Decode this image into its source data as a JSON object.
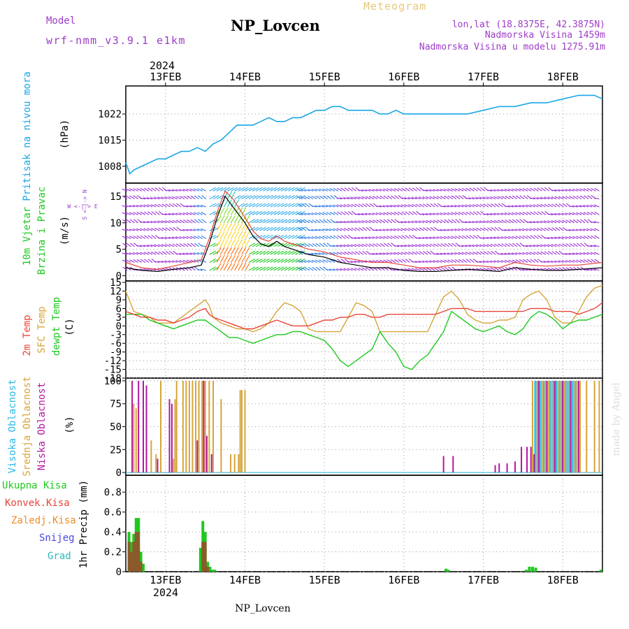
{
  "header": {
    "model_label": "Model",
    "model_name": "wrf-nmm_v3.9.1  e1km",
    "station": "NP_Lovcen",
    "meteogram": "Meteogram",
    "lonlat": "lon,lat (18.8375E, 42.3875N)",
    "elevation": "Nadmorska Visina 1459m",
    "model_elevation": "Nadmorska Visina u modelu 1275.91m"
  },
  "footer": {
    "station": "NP_Lovcen",
    "credit": "made by Angel"
  },
  "colors": {
    "pressure": "#1aa7e6",
    "wind_label": "#1ec81e",
    "temp": "#e8453a",
    "sfc": "#d6a53a",
    "dewpt": "#1ec81e",
    "high_cloud": "#2db9e6",
    "mid_cloud": "#d6a53a",
    "low_cloud": "#b5179e",
    "legend_purple": "#9d3cc8",
    "snow": "#4646e6",
    "grad": "#2db9b9",
    "freezing": "#f08c28",
    "conv": "#e8453a"
  },
  "chart_data": [
    {
      "type": "line",
      "panel": "pressure",
      "ylabel_line1": "Pritisak na nivou mora",
      "ylabel_line2": "(hPa)",
      "yticks": [
        1008,
        1015,
        1022
      ],
      "ylim": [
        1003.5,
        1029.5
      ],
      "x_ticks": [
        "13FEB",
        "14FEB",
        "15FEB",
        "16FEB",
        "17FEB",
        "18FEB"
      ],
      "year": "2024",
      "xlim": [
        12.5,
        18.5
      ],
      "x": [
        12.5,
        12.55,
        12.6,
        12.7,
        12.8,
        12.9,
        13.0,
        13.1,
        13.2,
        13.3,
        13.4,
        13.5,
        13.6,
        13.7,
        13.8,
        13.9,
        14.0,
        14.1,
        14.2,
        14.3,
        14.4,
        14.5,
        14.6,
        14.7,
        14.8,
        14.9,
        15.0,
        15.1,
        15.2,
        15.3,
        15.4,
        15.5,
        15.6,
        15.7,
        15.8,
        15.9,
        16.0,
        16.2,
        16.4,
        16.6,
        16.8,
        17.0,
        17.2,
        17.4,
        17.6,
        17.8,
        18.0,
        18.2,
        18.3,
        18.4,
        18.5
      ],
      "series": [
        {
          "values": [
            1009,
            1006,
            1007,
            1008,
            1009,
            1010,
            1010,
            1011,
            1012,
            1012,
            1013,
            1012,
            1014,
            1015,
            1017,
            1019,
            1019,
            1019,
            1020,
            1021,
            1020,
            1020,
            1021,
            1021,
            1022,
            1023,
            1023,
            1024,
            1024,
            1023,
            1023,
            1023,
            1023,
            1022,
            1022,
            1023,
            1022,
            1022,
            1022,
            1022,
            1022,
            1023,
            1024,
            1024,
            1025,
            1025,
            1026,
            1027,
            1027,
            1027,
            1026
          ]
        }
      ]
    },
    {
      "type": "line",
      "panel": "wind",
      "ylabel_line1": "10m Vjetar",
      "ylabel_line2": "Brzina i Pravac",
      "ylabel_unit": "(m/s)",
      "compass": "W <-|-> E",
      "compass_vertical": "S <-|-> N",
      "yticks": [
        0,
        5,
        10,
        15
      ],
      "ylim": [
        -1,
        17.5
      ],
      "x": [
        12.5,
        12.7,
        12.9,
        13.1,
        13.3,
        13.45,
        13.55,
        13.65,
        13.75,
        13.85,
        14.0,
        14.1,
        14.2,
        14.3,
        14.4,
        14.5,
        14.6,
        14.7,
        14.8,
        15.0,
        15.2,
        15.4,
        15.6,
        15.8,
        16.0,
        16.2,
        16.4,
        16.6,
        16.8,
        17.0,
        17.2,
        17.4,
        17.6,
        17.8,
        18.0,
        18.2,
        18.5
      ],
      "series": [
        {
          "name": "speed",
          "values": [
            1.5,
            1.0,
            0.8,
            1.2,
            1.5,
            2.0,
            6.0,
            11.0,
            15.0,
            13.0,
            10.0,
            7.5,
            6.0,
            5.5,
            6.5,
            5.5,
            5.0,
            4.5,
            4.0,
            3.5,
            2.5,
            2.0,
            1.5,
            1.5,
            1.0,
            0.8,
            0.8,
            1.0,
            1.2,
            1.0,
            0.8,
            1.5,
            1.2,
            1.0,
            1.0,
            1.2,
            1.5
          ]
        },
        {
          "name": "gust",
          "values": [
            2.5,
            1.5,
            1.2,
            1.8,
            2.5,
            3.0,
            7.0,
            12.0,
            16.0,
            14.5,
            11.0,
            8.5,
            7.0,
            6.5,
            7.5,
            6.5,
            6.0,
            5.5,
            5.0,
            4.5,
            3.5,
            3.0,
            2.5,
            2.5,
            2.0,
            1.5,
            1.5,
            2.0,
            2.0,
            1.8,
            1.5,
            2.5,
            2.0,
            1.8,
            2.0,
            2.0,
            2.5
          ]
        }
      ]
    },
    {
      "type": "line",
      "panel": "temperature",
      "ylabel_line1": "2m Temp",
      "ylabel_line2": "SFC Temp",
      "ylabel_line3": "dewpt Temp",
      "ylabel_unit": "(C)",
      "yticks": [
        15,
        12,
        9,
        6,
        3,
        0,
        -3,
        -6,
        -9,
        -12,
        -15,
        -18
      ],
      "ylim": [
        -18,
        15.5
      ],
      "x": [
        12.5,
        12.6,
        12.7,
        12.8,
        12.9,
        13.0,
        13.1,
        13.2,
        13.3,
        13.4,
        13.5,
        13.55,
        13.6,
        13.7,
        13.8,
        13.9,
        14.0,
        14.1,
        14.2,
        14.3,
        14.4,
        14.5,
        14.6,
        14.7,
        14.8,
        14.9,
        15.0,
        15.1,
        15.2,
        15.3,
        15.4,
        15.5,
        15.6,
        15.7,
        15.8,
        15.9,
        16.0,
        16.1,
        16.2,
        16.3,
        16.4,
        16.5,
        16.6,
        16.7,
        16.8,
        16.9,
        17.0,
        17.1,
        17.2,
        17.3,
        17.4,
        17.5,
        17.6,
        17.7,
        17.8,
        17.9,
        18.0,
        18.1,
        18.2,
        18.3,
        18.4,
        18.5
      ],
      "series": [
        {
          "name": "2m Temp",
          "values": [
            5,
            4,
            3,
            3,
            2,
            2,
            1,
            2,
            3,
            5,
            6,
            4,
            3,
            2,
            1,
            0,
            -1,
            -1,
            0,
            1,
            2,
            1,
            0,
            0,
            0,
            1,
            2,
            2,
            3,
            3,
            4,
            4,
            3,
            3,
            4,
            4,
            4,
            4,
            4,
            4,
            4,
            5,
            6,
            6,
            6,
            5,
            5,
            5,
            5,
            5,
            5,
            5,
            6,
            6,
            6,
            5,
            5,
            5,
            4,
            5,
            6,
            8
          ]
        },
        {
          "name": "SFC Temp",
          "values": [
            12,
            5,
            4,
            3,
            1,
            1,
            1,
            3,
            5,
            7,
            9,
            7,
            3,
            1,
            0,
            -1,
            -1,
            -2,
            -1,
            1,
            5,
            8,
            7,
            5,
            -1,
            -2,
            -2,
            -2,
            -2,
            3,
            8,
            7,
            5,
            -2,
            -2,
            -2,
            -2,
            -2,
            -2,
            -2,
            4,
            10,
            12,
            9,
            4,
            2,
            1,
            1,
            2,
            2,
            3,
            9,
            11,
            12,
            9,
            3,
            1,
            1,
            5,
            10,
            13,
            14
          ]
        },
        {
          "name": "dewpt Temp",
          "values": [
            4,
            4,
            4,
            2,
            1,
            0,
            -1,
            0,
            1,
            2,
            2,
            1,
            0,
            -2,
            -4,
            -4,
            -5,
            -6,
            -5,
            -4,
            -3,
            -3,
            -2,
            -2,
            -3,
            -4,
            -5,
            -8,
            -12,
            -14,
            -12,
            -10,
            -8,
            -2,
            -6,
            -9,
            -14,
            -15,
            -12,
            -10,
            -6,
            -2,
            5,
            3,
            1,
            -1,
            -2,
            -1,
            0,
            -2,
            -3,
            -1,
            3,
            5,
            4,
            2,
            -1,
            1,
            2,
            2,
            3,
            4
          ]
        }
      ]
    },
    {
      "type": "bar",
      "panel": "clouds",
      "ylabel_line1": "Visoka Oblacnost",
      "ylabel_line2": "Srednja Oblacnost",
      "ylabel_line3": "Niska Oblacnost",
      "ylabel_unit": "(%)",
      "yticks": [
        0,
        25,
        50,
        75,
        100
      ],
      "ylim": [
        -3,
        103
      ],
      "series": [
        {
          "name": "Visoka Oblacnost",
          "x": [
            17.65,
            17.68,
            17.72,
            17.76,
            17.8,
            17.84,
            17.88,
            17.92,
            17.96,
            18.0,
            18.04,
            18.08,
            18.12,
            18.16
          ],
          "values": [
            100,
            100,
            100,
            100,
            100,
            100,
            100,
            100,
            100,
            100,
            100,
            100,
            100,
            100
          ]
        },
        {
          "name": "Srednja Oblacnost",
          "x": [
            12.6,
            12.63,
            12.82,
            12.88,
            12.94,
            13.1,
            13.12,
            13.14,
            13.22,
            13.26,
            13.3,
            13.34,
            13.38,
            13.42,
            13.46,
            13.5,
            13.55,
            13.6,
            13.7,
            13.82,
            13.87,
            13.92,
            13.94,
            13.96,
            14.0,
            17.62,
            17.66,
            17.7,
            17.74,
            17.78,
            17.82,
            17.86,
            17.9,
            17.94,
            17.98,
            18.02,
            18.06,
            18.1,
            18.14,
            18.18,
            18.22,
            18.3,
            18.4,
            18.46
          ],
          "values": [
            75,
            70,
            35,
            20,
            100,
            15,
            80,
            100,
            100,
            100,
            100,
            100,
            100,
            100,
            100,
            100,
            100,
            100,
            80,
            20,
            20,
            20,
            90,
            90,
            90,
            100,
            100,
            100,
            100,
            100,
            100,
            100,
            100,
            100,
            100,
            100,
            100,
            100,
            100,
            100,
            100,
            100,
            100,
            100
          ]
        },
        {
          "name": "Niska Oblacnost",
          "x": [
            12.58,
            12.66,
            12.72,
            12.76,
            12.9,
            13.05,
            13.08,
            13.4,
            13.48,
            13.52,
            13.58,
            16.5,
            16.62,
            17.15,
            17.2,
            17.3,
            17.4,
            17.48,
            17.55,
            17.6,
            17.64,
            17.7,
            17.8,
            17.9,
            18.0,
            18.1,
            18.2
          ],
          "values": [
            100,
            100,
            100,
            95,
            15,
            80,
            75,
            35,
            100,
            40,
            20,
            18,
            18,
            8,
            10,
            10,
            12,
            28,
            28,
            28,
            20,
            100,
            100,
            100,
            100,
            100,
            100
          ]
        }
      ]
    },
    {
      "type": "bar",
      "panel": "precip",
      "legend": [
        "Ukupna Kisa",
        "Konvek.Kisa",
        "Zaledj.Kisa",
        "Snijeg",
        "Grad"
      ],
      "ylabel_line1": "1hr Precip (mm)",
      "yticks": [
        0,
        0.2,
        0.4,
        0.6,
        0.8
      ],
      "ylim": [
        0,
        0.97
      ],
      "x_ticks": [
        "13FEB",
        "14FEB",
        "15FEB",
        "16FEB",
        "17FEB",
        "18FEB"
      ],
      "year": "2024",
      "series": [
        {
          "name": "Ukupna Kisa",
          "x": [
            12.54,
            12.57,
            12.6,
            12.63,
            12.66,
            12.69,
            12.72,
            13.44,
            13.47,
            13.5,
            13.53,
            13.56,
            13.59,
            13.62,
            16.53,
            16.56,
            17.54,
            17.58,
            17.62,
            17.66,
            18.48
          ],
          "values": [
            0.4,
            0.3,
            0.38,
            0.54,
            0.54,
            0.2,
            0.08,
            0.24,
            0.51,
            0.4,
            0.1,
            0.05,
            0.02,
            0.02,
            0.03,
            0.02,
            0.02,
            0.05,
            0.05,
            0.04,
            0.02
          ]
        },
        {
          "name": "Konvek.Kisa",
          "x": [
            12.54,
            12.57,
            12.6,
            12.63,
            12.66,
            12.69,
            13.47,
            13.5,
            13.53
          ],
          "values": [
            0.3,
            0.2,
            0.3,
            0.4,
            0.4,
            0.1,
            0.3,
            0.3,
            0.05
          ]
        }
      ]
    }
  ]
}
